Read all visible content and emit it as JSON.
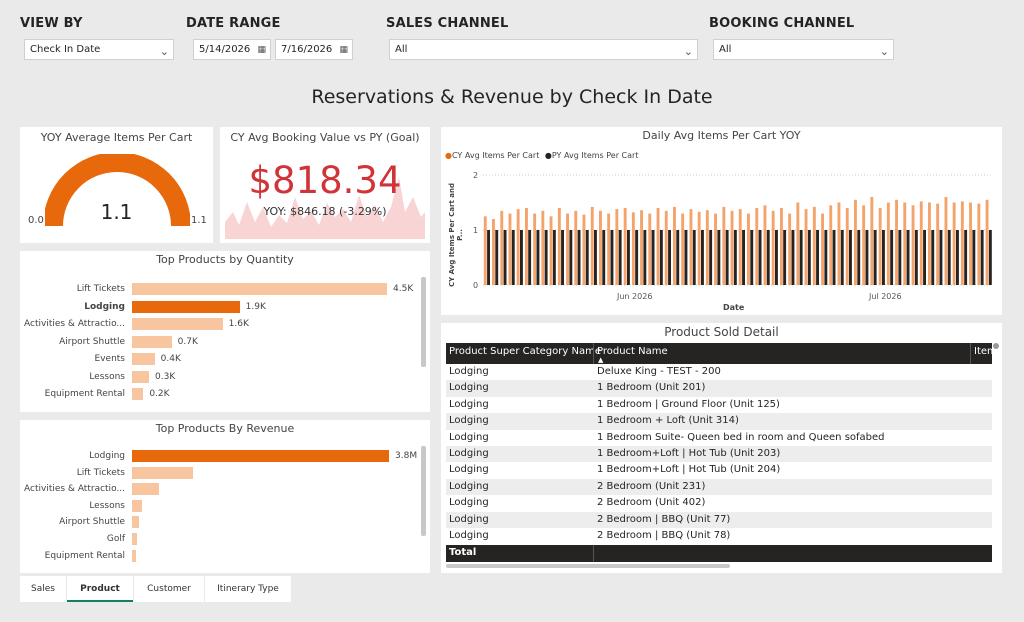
{
  "filters": {
    "view_by": {
      "label": "VIEW BY",
      "value": "Check In Date"
    },
    "date_range": {
      "label": "DATE RANGE",
      "start": "5/14/2026",
      "end": "7/16/2026"
    },
    "sales_channel": {
      "label": "SALES CHANNEL",
      "value": "All"
    },
    "booking_channel": {
      "label": "BOOKING CHANNEL",
      "value": "All"
    }
  },
  "page_title": "Reservations & Revenue by Check In Date",
  "gauge": {
    "title": "YOY Average Items Per Cart",
    "value": "1.1",
    "min": "0.0",
    "max": "1.1",
    "fill": 1.0,
    "color": "#e8690c"
  },
  "kpi": {
    "title": "CY Avg Booking Value vs PY (Goal)",
    "value": "$818.34",
    "subtitle": "YOY: $846.18 (-3.29%)",
    "color": "#d13438"
  },
  "top_qty": {
    "title": "Top Products by Quantity",
    "items": [
      {
        "label": "Lift Tickets",
        "value": 4.5,
        "display": "4.5K",
        "bold": false
      },
      {
        "label": "Lodging",
        "value": 1.9,
        "display": "1.9K",
        "bold": true
      },
      {
        "label": "Activities & Attractio...",
        "value": 1.6,
        "display": "1.6K",
        "bold": false
      },
      {
        "label": "Airport Shuttle",
        "value": 0.7,
        "display": "0.7K",
        "bold": false
      },
      {
        "label": "Events",
        "value": 0.4,
        "display": "0.4K",
        "bold": false
      },
      {
        "label": "Lessons",
        "value": 0.3,
        "display": "0.3K",
        "bold": false
      },
      {
        "label": "Equipment Rental",
        "value": 0.2,
        "display": "0.2K",
        "bold": false
      }
    ]
  },
  "top_rev": {
    "title": "Top Products By Revenue",
    "items": [
      {
        "label": "Lodging",
        "value": 3.8,
        "display": "3.8M",
        "bold": false
      },
      {
        "label": "Lift Tickets",
        "value": 0.9,
        "display": "",
        "bold": false
      },
      {
        "label": "Activities & Attractio...",
        "value": 0.4,
        "display": "",
        "bold": false
      },
      {
        "label": "Lessons",
        "value": 0.15,
        "display": "",
        "bold": false
      },
      {
        "label": "Airport Shuttle",
        "value": 0.1,
        "display": "",
        "bold": false
      },
      {
        "label": "Golf",
        "value": 0.07,
        "display": "",
        "bold": false
      },
      {
        "label": "Equipment Rental",
        "value": 0.06,
        "display": "",
        "bold": false
      }
    ]
  },
  "chart_data": {
    "type": "bar",
    "title": "Daily Avg Items Per Cart YOY",
    "xlabel": "Date",
    "ylabel": "CY Avg Items Per Cart and P...",
    "ylim": [
      0,
      2
    ],
    "yticks": [
      "0",
      "1",
      "2"
    ],
    "xticks": [
      "Jun 2026",
      "Jul 2026"
    ],
    "legend": "top-left",
    "series": [
      {
        "name": "CY Avg Items Per Cart",
        "color": "#f4a46b",
        "values": [
          1.25,
          1.2,
          1.35,
          1.3,
          1.38,
          1.4,
          1.3,
          1.35,
          1.25,
          1.4,
          1.3,
          1.35,
          1.28,
          1.42,
          1.35,
          1.3,
          1.38,
          1.4,
          1.32,
          1.36,
          1.3,
          1.4,
          1.35,
          1.42,
          1.3,
          1.38,
          1.33,
          1.36,
          1.3,
          1.42,
          1.35,
          1.38,
          1.3,
          1.4,
          1.45,
          1.35,
          1.4,
          1.3,
          1.5,
          1.38,
          1.42,
          1.3,
          1.45,
          1.5,
          1.4,
          1.55,
          1.45,
          1.6,
          1.4,
          1.5,
          1.55,
          1.5,
          1.45,
          1.52,
          1.5,
          1.48,
          1.6,
          1.5,
          1.52,
          1.5,
          1.48,
          1.55
        ]
      },
      {
        "name": "PY Avg Items Per Cart",
        "color": "#252423",
        "values": [
          1.0,
          1.0,
          1.0,
          1.0,
          1.0,
          1.0,
          1.0,
          1.0,
          1.0,
          1.0,
          1.0,
          1.0,
          1.0,
          1.0,
          1.0,
          1.0,
          1.0,
          1.0,
          1.0,
          1.0,
          1.0,
          1.0,
          1.0,
          1.0,
          1.0,
          1.0,
          1.0,
          1.0,
          1.0,
          1.0,
          1.0,
          1.0,
          1.0,
          1.0,
          1.0,
          1.0,
          1.0,
          1.0,
          1.0,
          1.0,
          1.0,
          1.0,
          1.0,
          1.0,
          1.0,
          1.0,
          1.0,
          1.0,
          1.0,
          1.0,
          1.0,
          1.0,
          1.0,
          1.0,
          1.0,
          1.0,
          1.0,
          1.0,
          1.0,
          1.0,
          1.0,
          1.0
        ]
      }
    ]
  },
  "detail_table": {
    "title": "Product Sold Detail",
    "columns": [
      "Product Super Category Name",
      "Product Name",
      "Item"
    ],
    "rows": [
      [
        "Lodging",
        "Deluxe King - TEST - 200"
      ],
      [
        "Lodging",
        "1 Bedroom (Unit 201)"
      ],
      [
        "Lodging",
        "1 Bedroom | Ground Floor (Unit 125)"
      ],
      [
        "Lodging",
        "1 Bedroom + Loft (Unit 314)"
      ],
      [
        "Lodging",
        "1 Bedroom Suite- Queen bed in room and Queen sofabed"
      ],
      [
        "Lodging",
        "1 Bedroom+Loft | Hot Tub (Unit 203)"
      ],
      [
        "Lodging",
        "1 Bedroom+Loft | Hot Tub (Unit 204)"
      ],
      [
        "Lodging",
        "2 Bedroom (Unit 231)"
      ],
      [
        "Lodging",
        "2 Bedroom (Unit 402)"
      ],
      [
        "Lodging",
        "2 Bedroom | BBQ (Unit 77)"
      ],
      [
        "Lodging",
        "2 Bedroom | BBQ (Unit 78)"
      ]
    ],
    "total_label": "Total"
  },
  "tabs": [
    "Sales",
    "Product",
    "Customer",
    "Itinerary Type"
  ],
  "active_tab": 1
}
